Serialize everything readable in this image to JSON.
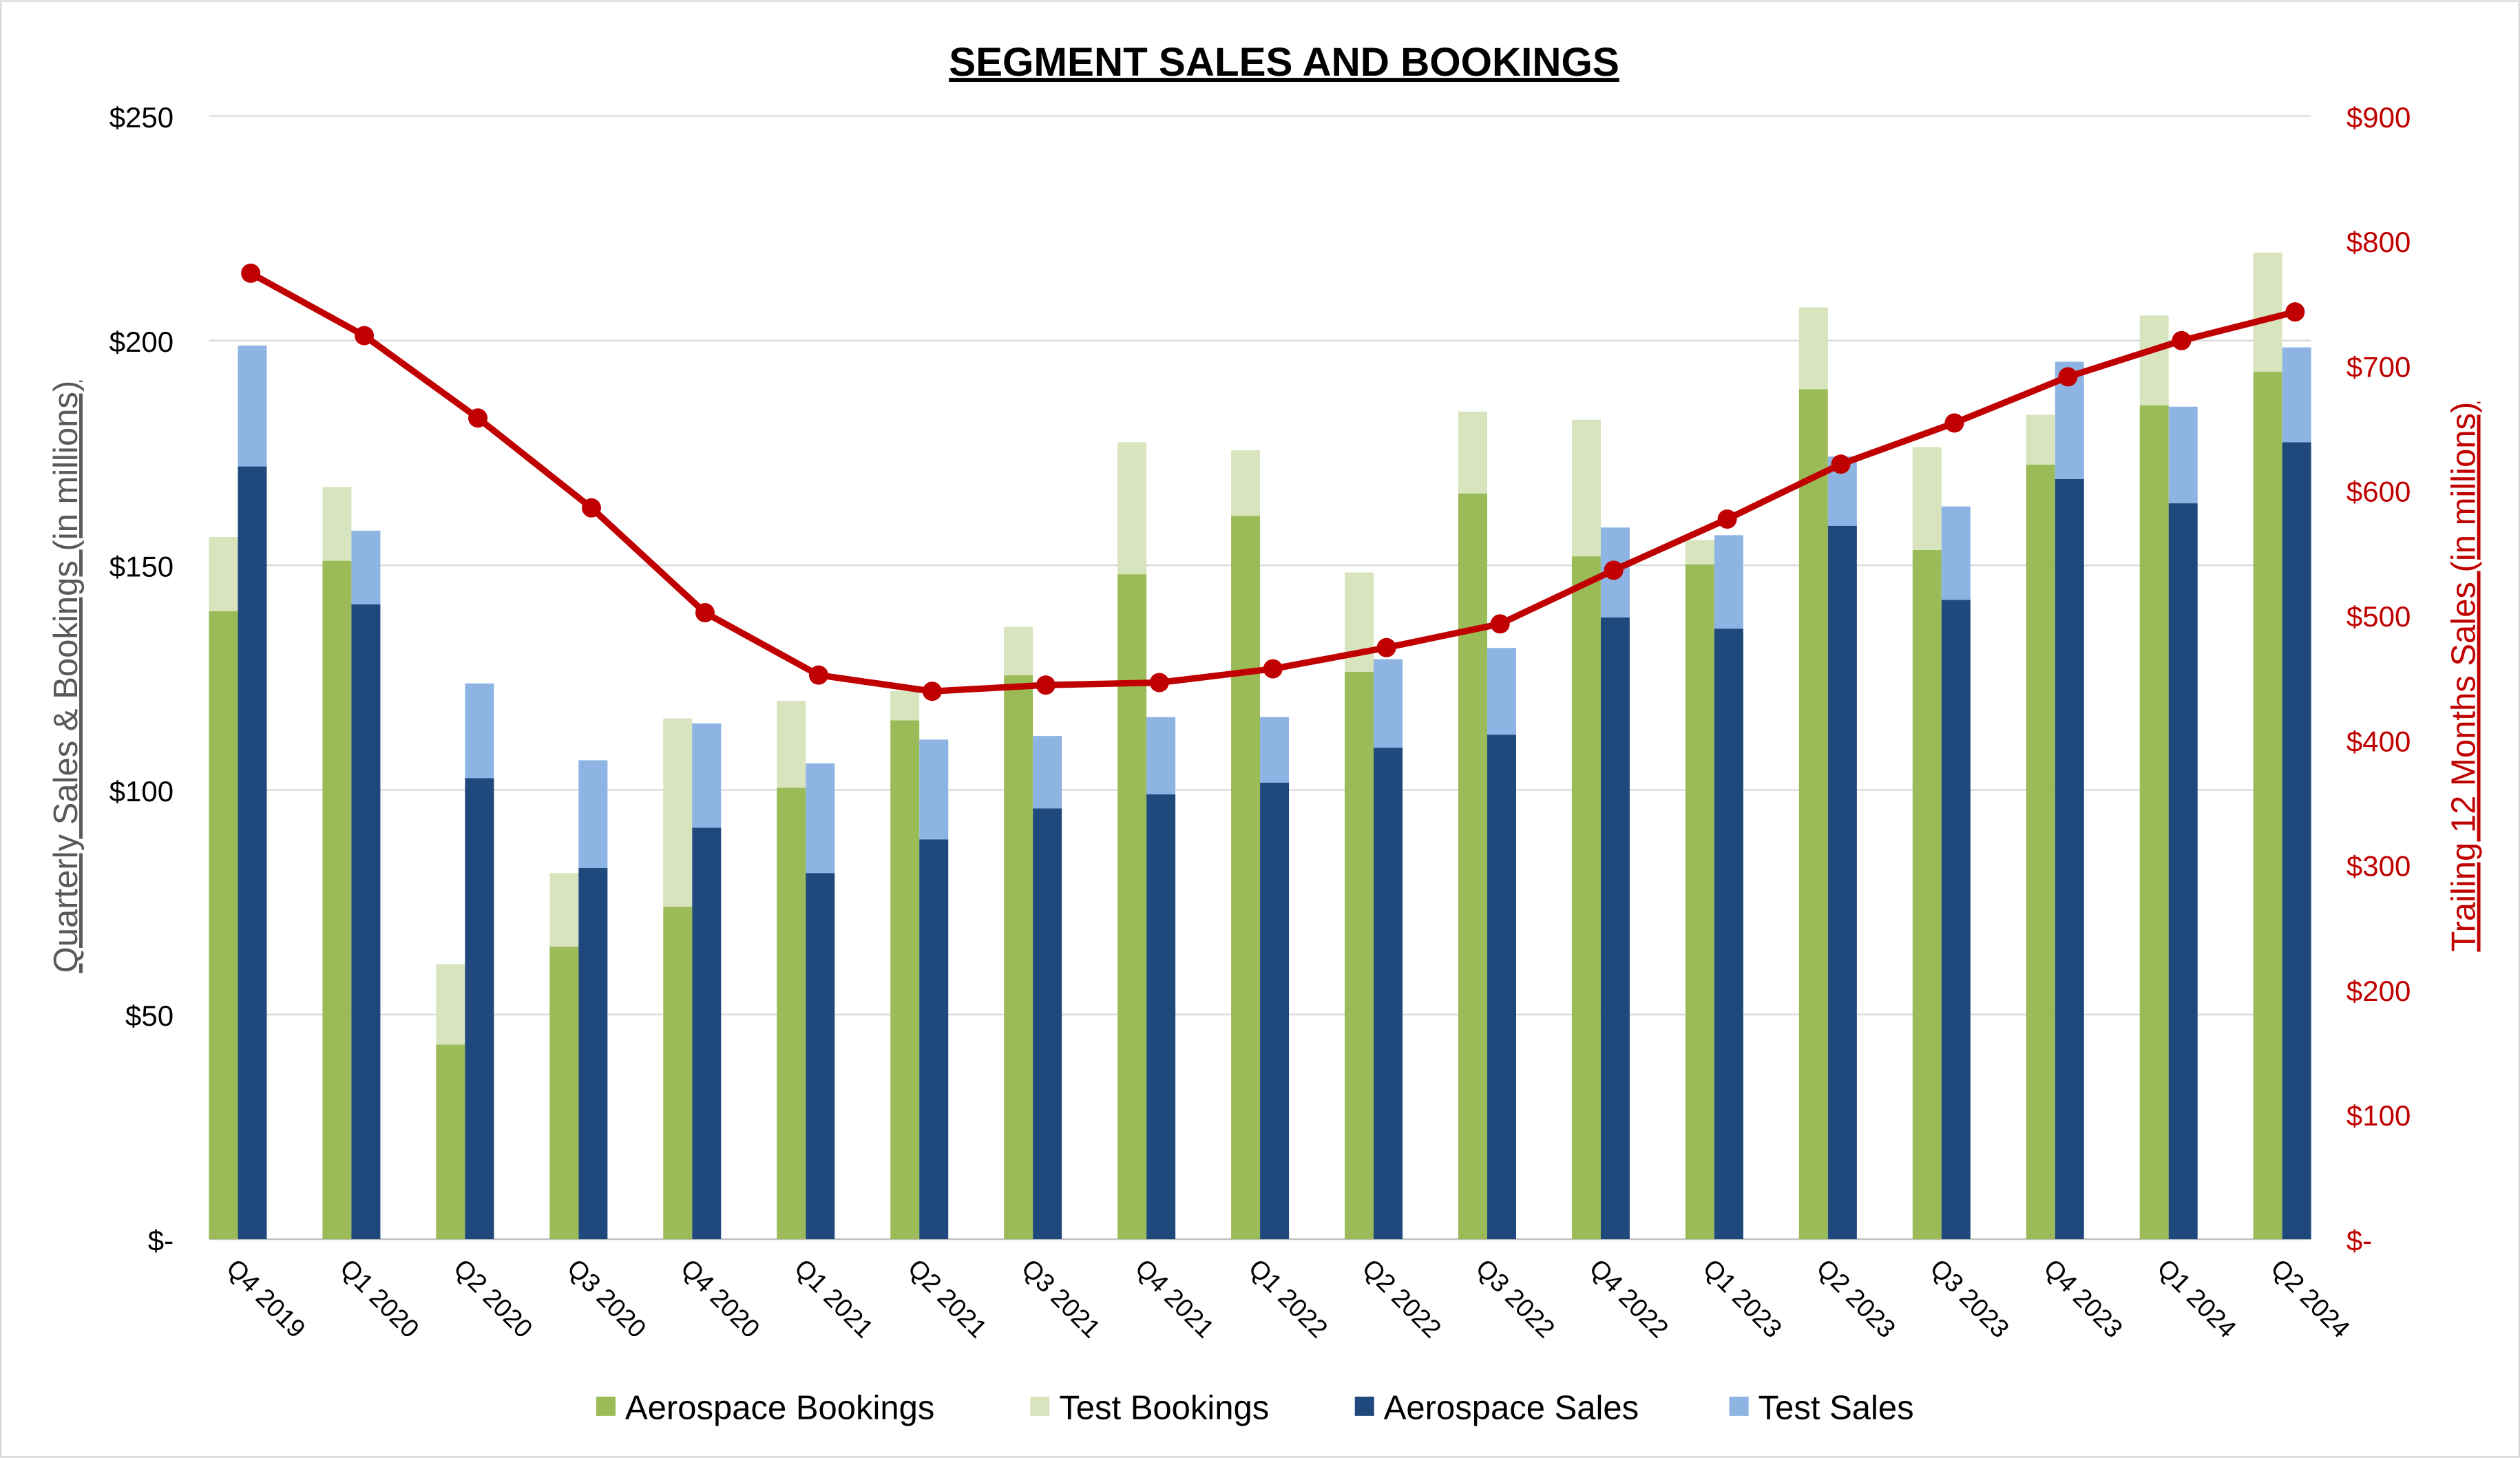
{
  "chart_data": {
    "type": "bar",
    "title": "SEGMENT SALES AND BOOKINGS",
    "ylabel": "Quarterly Sales & Bookings (in millions)",
    "y2label": "Trailing 12 Months Sales (in millions)",
    "ylim": [
      0,
      250
    ],
    "y2lim": [
      0,
      900
    ],
    "yticks": [
      "$-",
      "$50",
      "$100",
      "$150",
      "$200",
      "$250"
    ],
    "y2ticks": [
      "$-",
      "$100",
      "$200",
      "$300",
      "$400",
      "$500",
      "$600",
      "$700",
      "$800",
      "$900"
    ],
    "grid": true,
    "legend_position": "bottom",
    "categories": [
      "Q4 2019",
      "Q1 2020",
      "Q2 2020",
      "Q3 2020",
      "Q4 2020",
      "Q1 2021",
      "Q2 2021",
      "Q3 2021",
      "Q4 2021",
      "Q1 2022",
      "Q2 2022",
      "Q3 2022",
      "Q4 2022",
      "Q1 2023",
      "Q2 2023",
      "Q3 2023",
      "Q4 2023",
      "Q1 2024",
      "Q2 2024"
    ],
    "series": [
      {
        "name": "Aerospace Bookings",
        "stack": "bookings",
        "color": "#9BBB59",
        "values": [
          139.8,
          151.0,
          43.3,
          65.1,
          74.0,
          100.5,
          115.5,
          125.5,
          148.0,
          161.0,
          126.3,
          166.0,
          152.0,
          150.2,
          189.2,
          153.4,
          172.4,
          185.6,
          193.1
        ]
      },
      {
        "name": "Test Bookings",
        "stack": "bookings",
        "color": "#D7E4BD",
        "values": [
          16.5,
          16.4,
          17.9,
          16.4,
          41.9,
          19.3,
          6.5,
          10.8,
          29.4,
          14.6,
          22.1,
          18.2,
          30.4,
          5.4,
          18.2,
          22.9,
          11.1,
          20.0,
          26.5
        ]
      },
      {
        "name": "Aerospace Sales",
        "stack": "sales",
        "color": "#1F497D",
        "values": [
          172.0,
          141.3,
          102.6,
          82.6,
          91.6,
          81.5,
          89.0,
          95.9,
          99.0,
          101.6,
          109.4,
          112.3,
          138.4,
          135.9,
          158.8,
          142.3,
          169.2,
          163.8,
          177.4
        ]
      },
      {
        "name": "Test Sales",
        "stack": "sales",
        "color": "#8EB4E3",
        "values": [
          26.9,
          16.4,
          21.1,
          24.0,
          23.2,
          24.4,
          22.2,
          16.1,
          17.2,
          14.6,
          19.7,
          19.3,
          20.0,
          20.8,
          15.4,
          20.8,
          26.1,
          21.5,
          21.1
        ]
      }
    ],
    "line": {
      "axis": "right",
      "color": "#C00000",
      "values": [
        774,
        724,
        658,
        586,
        502,
        452,
        439,
        444,
        446,
        457,
        474,
        493,
        536,
        577,
        621,
        654,
        691,
        720,
        743
      ]
    }
  }
}
